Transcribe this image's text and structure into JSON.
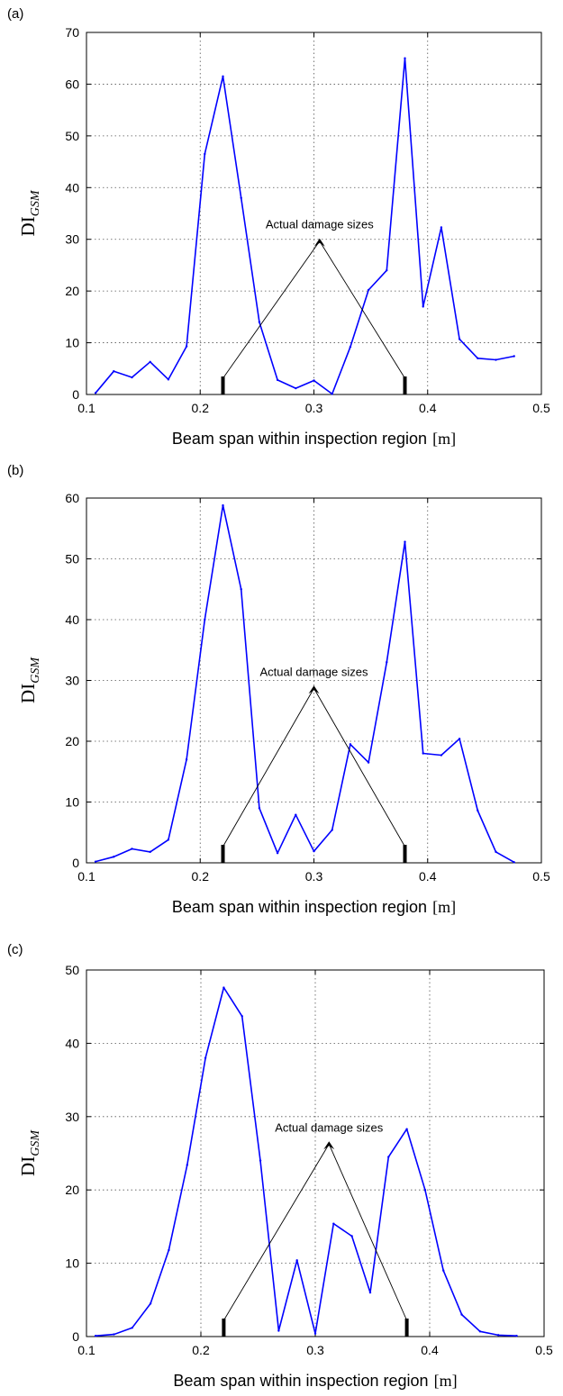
{
  "colors": {
    "series": "#0000ff",
    "axis": "#000000",
    "annotation": "#000000"
  },
  "chart_data": [
    {
      "panel_label": "(a)",
      "type": "line",
      "xlabel": "Beam span within inspection region",
      "xlabel_unit": "[m]",
      "ylabel": "DI",
      "ylabel_sub": "GSM",
      "xlim": [
        0.1,
        0.5
      ],
      "ylim": [
        0,
        70
      ],
      "xticks": [
        "0.1",
        "0.2",
        "0.3",
        "0.4",
        "0.5"
      ],
      "yticks": [
        "0",
        "10",
        "20",
        "30",
        "40",
        "50",
        "60",
        "70"
      ],
      "grid": true,
      "x": [
        0.108,
        0.124,
        0.14,
        0.156,
        0.172,
        0.188,
        0.204,
        0.22,
        0.236,
        0.252,
        0.268,
        0.284,
        0.3,
        0.316,
        0.332,
        0.348,
        0.364,
        0.38,
        0.396,
        0.412,
        0.428,
        0.444,
        0.46,
        0.476
      ],
      "y": [
        0.3,
        4.5,
        3.3,
        6.3,
        2.9,
        9.3,
        46.5,
        61.5,
        38.0,
        14.0,
        2.8,
        1.2,
        2.7,
        0.1,
        9.2,
        20.2,
        24.0,
        65.0,
        17.0,
        32.3,
        10.7,
        7.0,
        6.7,
        7.4
      ],
      "annotation": {
        "text": "Actual damage sizes",
        "apex": [
          0.305,
          30
        ],
        "markers": [
          0.22,
          0.38
        ]
      }
    },
    {
      "panel_label": "(b)",
      "type": "line",
      "xlabel": "Beam span within inspection region",
      "xlabel_unit": "[m]",
      "ylabel": "DI",
      "ylabel_sub": "GSM",
      "xlim": [
        0.1,
        0.5
      ],
      "ylim": [
        0,
        60
      ],
      "xticks": [
        "0.1",
        "0.2",
        "0.3",
        "0.4",
        "0.5"
      ],
      "yticks": [
        "0",
        "10",
        "20",
        "30",
        "40",
        "50",
        "60"
      ],
      "grid": true,
      "x": [
        0.108,
        0.124,
        0.14,
        0.156,
        0.172,
        0.188,
        0.204,
        0.22,
        0.236,
        0.252,
        0.268,
        0.284,
        0.3,
        0.316,
        0.332,
        0.348,
        0.364,
        0.38,
        0.396,
        0.412,
        0.428,
        0.444,
        0.46,
        0.476
      ],
      "y": [
        0.2,
        1.0,
        2.3,
        1.8,
        3.8,
        17.0,
        40.0,
        58.8,
        45.0,
        9.0,
        1.6,
        7.9,
        1.9,
        5.4,
        19.5,
        16.5,
        33.0,
        52.8,
        18.0,
        17.7,
        20.4,
        8.6,
        1.8,
        0.1
      ],
      "annotation": {
        "text": "Actual damage sizes",
        "apex": [
          0.3,
          29
        ],
        "markers": [
          0.22,
          0.38
        ]
      }
    },
    {
      "panel_label": "(c)",
      "type": "line",
      "xlabel": "Beam span within inspection region",
      "xlabel_unit": "[m]",
      "ylabel": "DI",
      "ylabel_sub": "GSM",
      "xlim": [
        0.1,
        0.5
      ],
      "ylim": [
        0,
        50
      ],
      "xticks": [
        "0.1",
        "0.2",
        "0.3",
        "0.4",
        "0.5"
      ],
      "yticks": [
        "0",
        "10",
        "20",
        "30",
        "40",
        "50"
      ],
      "grid": true,
      "x": [
        0.108,
        0.124,
        0.14,
        0.156,
        0.172,
        0.188,
        0.204,
        0.22,
        0.236,
        0.252,
        0.268,
        0.284,
        0.3,
        0.316,
        0.332,
        0.348,
        0.364,
        0.38,
        0.396,
        0.412,
        0.428,
        0.444,
        0.46,
        0.476
      ],
      "y": [
        0.1,
        0.3,
        1.2,
        4.5,
        11.8,
        23.4,
        38.0,
        47.6,
        43.7,
        24.0,
        0.8,
        10.4,
        0.4,
        15.4,
        13.7,
        6.0,
        24.5,
        28.3,
        20.0,
        9.0,
        3.0,
        0.7,
        0.2,
        0.1
      ],
      "annotation": {
        "text": "Actual damage sizes",
        "apex": [
          0.312,
          26.5
        ],
        "markers": [
          0.22,
          0.38
        ]
      }
    }
  ]
}
